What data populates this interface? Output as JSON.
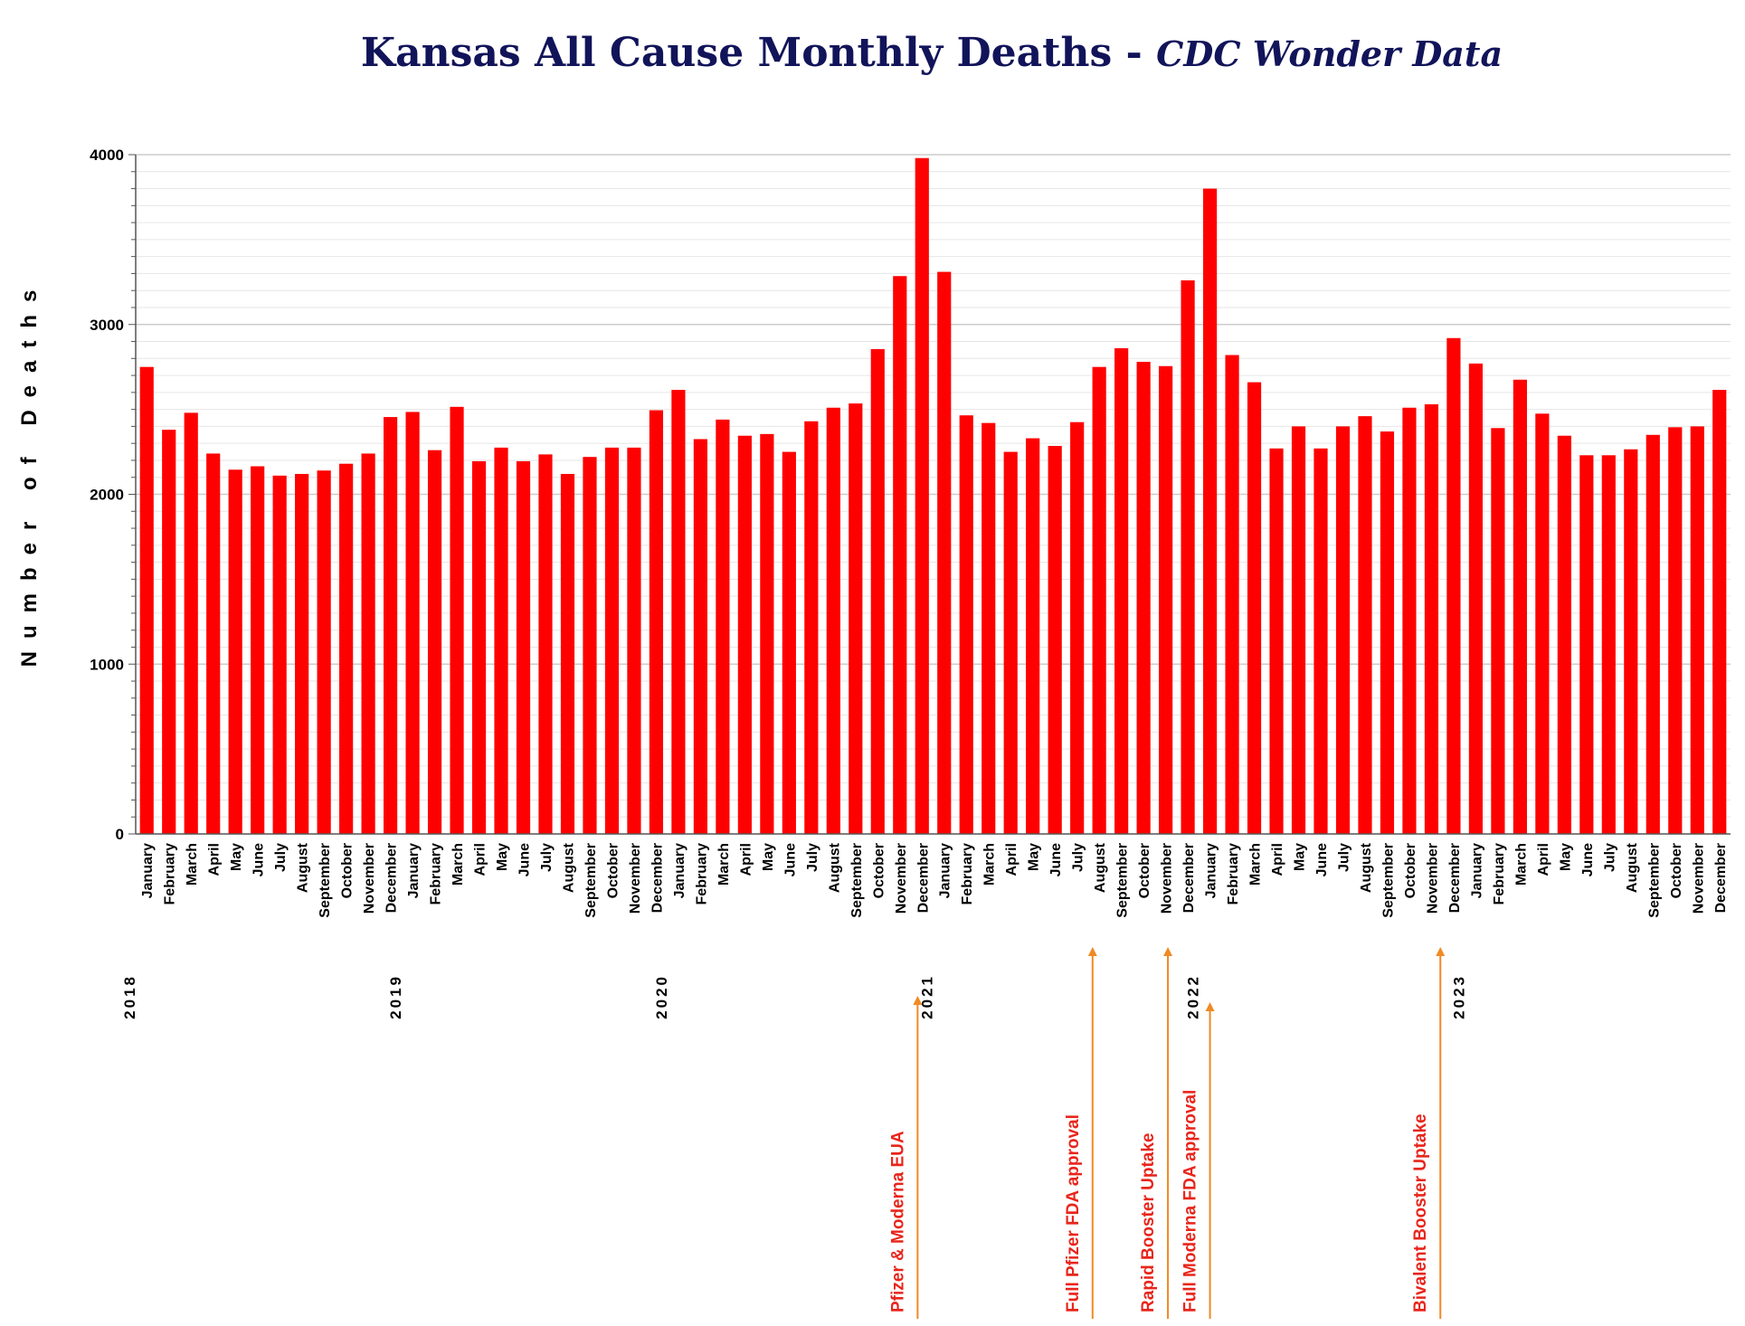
{
  "colors": {
    "bar": "#ff0000",
    "title": "#12145a",
    "annotation_text": "#e8251b",
    "annotation_arrow": "#f08a24",
    "grid_major": "#cccccc",
    "grid_minor": "#e6e6e6",
    "axis": "#555555"
  },
  "chart_data": {
    "type": "bar",
    "title": "Kansas All Cause Monthly Deaths - ",
    "subtitle": "CDC Wonder Data",
    "xlabel": "",
    "ylabel": "Number of Deaths",
    "ylim": [
      0,
      4000
    ],
    "y_ticks": [
      "0",
      "1000",
      "2000",
      "3000",
      "4000"
    ],
    "grid": true,
    "categories": [
      "January",
      "February",
      "March",
      "April",
      "May",
      "June",
      "July",
      "August",
      "September",
      "October",
      "November",
      "December",
      "January",
      "February",
      "March",
      "April",
      "May",
      "June",
      "July",
      "August",
      "September",
      "October",
      "November",
      "December",
      "January",
      "February",
      "March",
      "April",
      "May",
      "June",
      "July",
      "August",
      "September",
      "October",
      "November",
      "December",
      "January",
      "February",
      "March",
      "April",
      "May",
      "June",
      "July",
      "August",
      "September",
      "October",
      "November",
      "December",
      "January",
      "February",
      "March",
      "April",
      "May",
      "June",
      "July",
      "August",
      "September",
      "October",
      "November",
      "December",
      "January",
      "February",
      "March",
      "April",
      "May",
      "June",
      "July",
      "August",
      "September",
      "October",
      "November",
      "December"
    ],
    "years": [
      {
        "label": "2018",
        "start_index": 0
      },
      {
        "label": "2019",
        "start_index": 12
      },
      {
        "label": "2020",
        "start_index": 24
      },
      {
        "label": "2021",
        "start_index": 36
      },
      {
        "label": "2022",
        "start_index": 48
      },
      {
        "label": "2023",
        "start_index": 60
      }
    ],
    "series": [
      {
        "name": "Kansas all-cause deaths",
        "values": [
          2750,
          2380,
          2480,
          2240,
          2145,
          2165,
          2110,
          2120,
          2140,
          2180,
          2240,
          2455,
          2485,
          2260,
          2515,
          2195,
          2275,
          2195,
          2235,
          2120,
          2220,
          2275,
          2275,
          2495,
          2615,
          2325,
          2440,
          2345,
          2355,
          2250,
          2430,
          2510,
          2535,
          2855,
          3285,
          3980,
          3310,
          2465,
          2420,
          2250,
          2330,
          2285,
          2425,
          2750,
          2860,
          2780,
          2755,
          3260,
          3800,
          2820,
          2660,
          2270,
          2400,
          2270,
          2400,
          2460,
          2370,
          2510,
          2530,
          2920,
          2770,
          2390,
          2675,
          2475,
          2345,
          2230,
          2230,
          2265,
          2350,
          2395,
          2400,
          2615
        ]
      }
    ],
    "annotations": [
      {
        "text": "Pfizer & Moderna EUA",
        "month_index": 35.3
      },
      {
        "text": "Full Pfizer FDA approval",
        "month_index": 43.2
      },
      {
        "text": "Rapid Booster Uptake",
        "month_index": 46.6
      },
      {
        "text": "Full Moderna FDA approval",
        "month_index": 48.5
      },
      {
        "text": "Bivalent Booster Uptake",
        "month_index": 58.9
      }
    ]
  }
}
